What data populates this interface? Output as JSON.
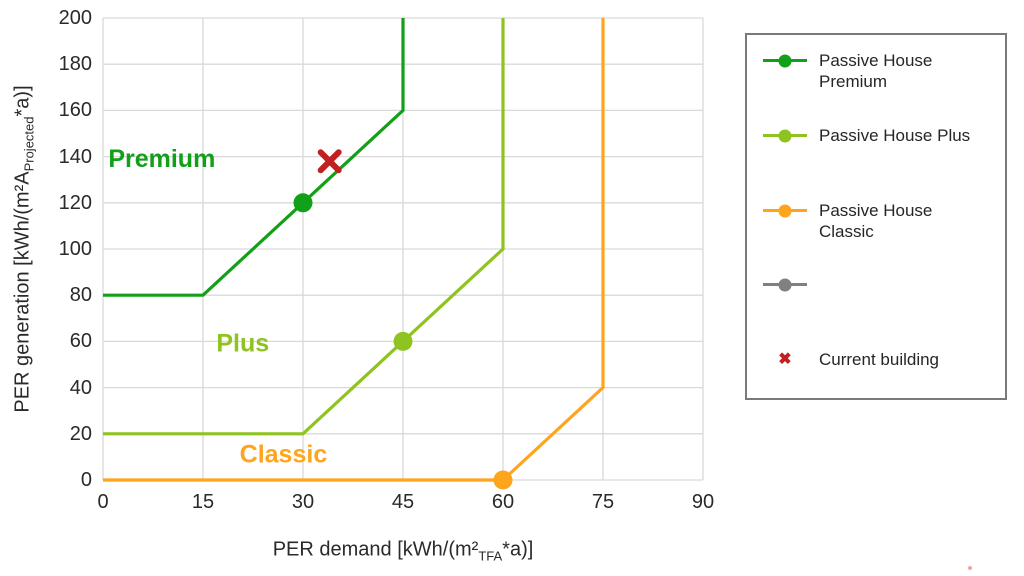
{
  "chart_data": {
    "type": "line",
    "title": "",
    "xlabel": {
      "pre": "PER demand [kWh/(m²",
      "sub": "TFA",
      "post": "*a)]"
    },
    "ylabel": {
      "pre": "PER generation [kWh/(m²A",
      "sub": "Projected",
      "post": "*a)]"
    },
    "xlim": [
      0,
      90
    ],
    "ylim": [
      0,
      200
    ],
    "x_ticks": [
      0,
      15,
      30,
      45,
      60,
      75,
      90
    ],
    "y_ticks": [
      0,
      20,
      40,
      60,
      80,
      100,
      120,
      140,
      160,
      180,
      200
    ],
    "grid": true,
    "grid_color": "#d9d9d9",
    "legend_position": "right",
    "series": [
      {
        "name": "Passive House Premium",
        "color": "#12a018",
        "points": [
          [
            0,
            80
          ],
          [
            15,
            80
          ],
          [
            45,
            160
          ],
          [
            45,
            200
          ]
        ],
        "marker_point": [
          30,
          120
        ]
      },
      {
        "name": "Passive House Plus",
        "color": "#8fc31f",
        "points": [
          [
            0,
            20
          ],
          [
            30,
            20
          ],
          [
            60,
            100
          ],
          [
            60,
            200
          ]
        ],
        "marker_point": [
          45,
          60
        ]
      },
      {
        "name": "Passive House Classic",
        "color": "#ffa41d",
        "points": [
          [
            0,
            0
          ],
          [
            60,
            0
          ],
          [
            75,
            40
          ],
          [
            75,
            200
          ]
        ],
        "marker_point": [
          60,
          0
        ]
      }
    ],
    "scatter": [
      {
        "name": "Current building",
        "color": "#c22020",
        "marker": "x",
        "point": [
          34,
          138
        ]
      }
    ],
    "annotations": [
      {
        "text": "Premium",
        "color": "#12a018",
        "x": 0.8,
        "y": 139
      },
      {
        "text": "Plus",
        "color": "#8fc31f",
        "x": 17,
        "y": 59
      },
      {
        "text": "Classic",
        "color": "#ffa41d",
        "x": 20.5,
        "y": 11
      }
    ]
  },
  "legend": {
    "items": [
      {
        "label": "Passive House Premium",
        "color": "#12a018",
        "type": "line-dot"
      },
      {
        "label": "Passive House Plus",
        "color": "#8fc31f",
        "type": "line-dot"
      },
      {
        "label": "Passive House Classic",
        "color": "#ffa41d",
        "type": "line-dot"
      },
      {
        "label": "",
        "color": "#808080",
        "type": "line-dot"
      },
      {
        "label": "Current building",
        "color": "#c22020",
        "type": "x"
      }
    ]
  }
}
